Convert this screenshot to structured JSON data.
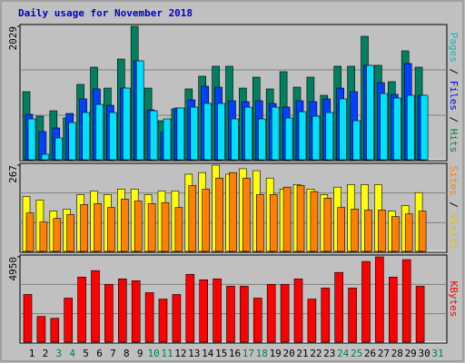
{
  "title": "Daily usage for November 2018",
  "title_color": "#0000c0",
  "categories": [
    "1",
    "2",
    "3",
    "4",
    "5",
    "6",
    "7",
    "8",
    "9",
    "10",
    "11",
    "12",
    "13",
    "14",
    "15",
    "16",
    "17",
    "18",
    "19",
    "20",
    "21",
    "22",
    "23",
    "24",
    "25",
    "26",
    "27",
    "28",
    "29",
    "30",
    "31"
  ],
  "weekend_days": [
    "3",
    "4",
    "10",
    "11",
    "17",
    "18",
    "24",
    "25",
    "31"
  ],
  "weekday_color": "#000000",
  "weekend_color": "#008040",
  "chart_data": [
    {
      "type": "bar",
      "ylim": [
        0,
        2029
      ],
      "yticks": [
        2029
      ],
      "legend_separator": " / ",
      "series": [
        {
          "name": "Pages",
          "color": "#00e0ff",
          "label_color": "#00c0c0",
          "values": [
            621,
            83,
            331,
            566,
            718,
            842,
            718,
            1090,
            1504,
            745,
            621,
            787,
            800,
            856,
            856,
            621,
            800,
            621,
            800,
            635,
            731,
            662,
            718,
            925,
            593,
            1436,
            1007,
            938,
            980,
            980,
            null
          ]
        },
        {
          "name": "Files",
          "color": "#0040ff",
          "label_color": "#0000ff",
          "values": [
            690,
            428,
            483,
            704,
            925,
            1077,
            828,
            1090,
            1504,
            759,
            414,
            787,
            911,
            1118,
            1104,
            897,
            883,
            897,
            856,
            801,
            897,
            883,
            925,
            1090,
            1035,
            1436,
            1173,
            994,
            1463,
            980,
            null
          ]
        },
        {
          "name": "Hits",
          "color": "#008060",
          "label_color": "#008040",
          "values": [
            1035,
            663,
            745,
            635,
            1146,
            1408,
            1090,
            1532,
            2029,
            1090,
            594,
            773,
            1077,
            1270,
            1422,
            1422,
            1090,
            1256,
            1077,
            1339,
            1104,
            1256,
            980,
            1422,
            1422,
            1877,
            1436,
            1187,
            1656,
            1408,
            null
          ]
        }
      ]
    },
    {
      "type": "bar",
      "ylim": [
        0,
        267
      ],
      "yticks": [
        267
      ],
      "legend_separator": " / ",
      "series": [
        {
          "name": "Sites",
          "color": "#ff8000",
          "label_color": "#ff8000",
          "values": [
            119,
            91,
            102,
            114,
            145,
            148,
            136,
            162,
            156,
            148,
            151,
            136,
            204,
            193,
            227,
            244,
            227,
            176,
            176,
            199,
            204,
            185,
            165,
            136,
            131,
            128,
            128,
            108,
            116,
            125,
            null
          ]
        },
        {
          "name": "Visits",
          "color": "#ffff00",
          "label_color": "#e0c000",
          "values": [
            170,
            159,
            125,
            131,
            176,
            187,
            176,
            193,
            193,
            176,
            187,
            187,
            239,
            244,
            267,
            239,
            256,
            250,
            227,
            193,
            207,
            193,
            176,
            199,
            207,
            207,
            207,
            125,
            142,
            182,
            null
          ]
        }
      ]
    },
    {
      "type": "bar",
      "ylim": [
        0,
        4950
      ],
      "yticks": [
        4950
      ],
      "series": [
        {
          "name": "KBytes",
          "color": "#ff0000",
          "label_color": "#ff0000",
          "values": [
            2766,
            1490,
            1383,
            2554,
            3777,
            4150,
            3352,
            3671,
            3564,
            2873,
            2500,
            2766,
            3937,
            3618,
            3671,
            3245,
            3245,
            2554,
            3352,
            3352,
            3671,
            2500,
            3139,
            4043,
            3139,
            4682,
            4950,
            3777,
            4788,
            3245,
            null
          ]
        }
      ]
    }
  ]
}
